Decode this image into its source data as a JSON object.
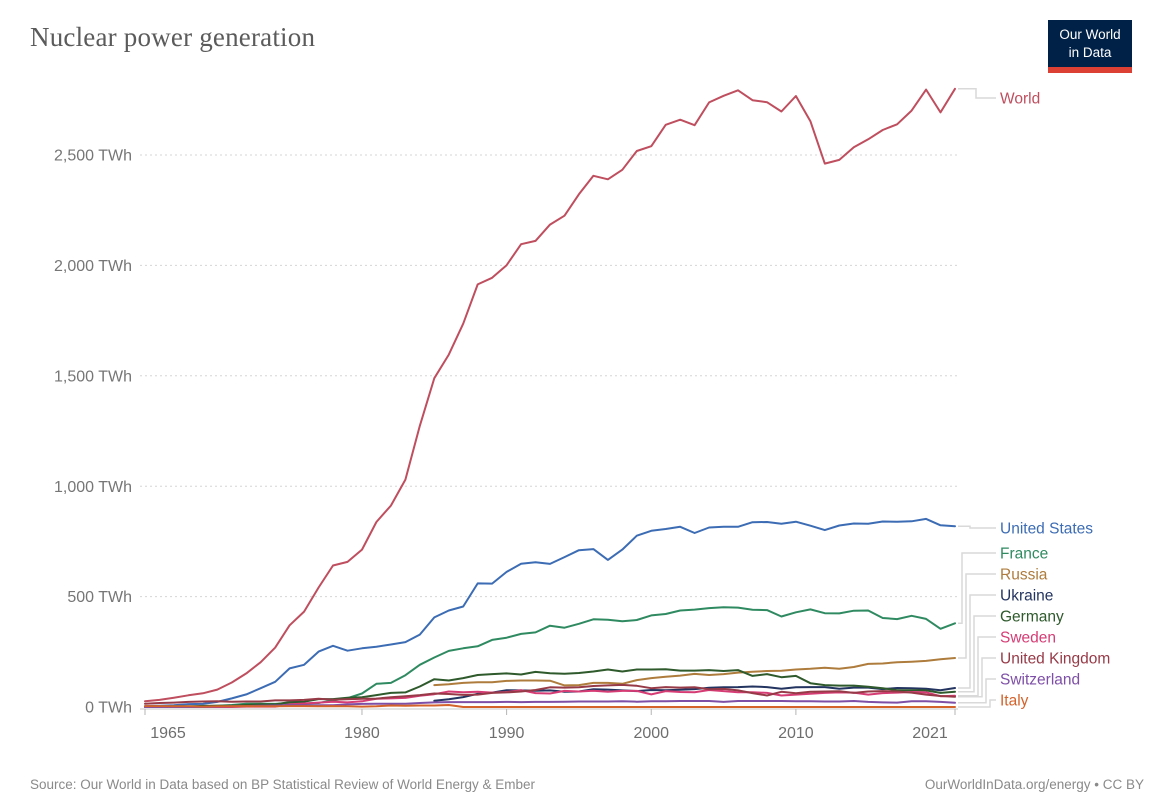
{
  "header": {
    "title": "Nuclear power generation",
    "logo": {
      "line1": "Our World",
      "line2": "in Data",
      "bg_color": "#002147",
      "bar_color": "#dc3f33"
    }
  },
  "footer": {
    "source": "Source: Our World in Data based on BP Statistical Review of World Energy & Ember",
    "credit": "OurWorldInData.org/energy • CC BY"
  },
  "chart_data": {
    "type": "line",
    "title": "Nuclear power generation",
    "unit": "TWh",
    "grid": "dashed-horizontal",
    "legend_position": "right-edge-labels",
    "x_range": [
      1965,
      2021
    ],
    "x_ticks": [
      1965,
      1980,
      1990,
      2000,
      2010,
      2021
    ],
    "y_ticks": [
      0,
      500,
      1000,
      1500,
      2000,
      2500
    ],
    "y_tick_labels": [
      "0 TWh",
      "500 TWh",
      "1,000 TWh",
      "1,500 TWh",
      "2,000 TWh",
      "2,500 TWh"
    ],
    "ylim": [
      0,
      2500
    ],
    "x": [
      1965,
      1966,
      1967,
      1968,
      1969,
      1970,
      1971,
      1972,
      1973,
      1974,
      1975,
      1976,
      1977,
      1978,
      1979,
      1980,
      1981,
      1982,
      1983,
      1984,
      1985,
      1986,
      1987,
      1988,
      1989,
      1990,
      1991,
      1992,
      1993,
      1994,
      1995,
      1996,
      1997,
      1998,
      1999,
      2000,
      2001,
      2002,
      2003,
      2004,
      2005,
      2006,
      2007,
      2008,
      2009,
      2010,
      2011,
      2012,
      2013,
      2014,
      2015,
      2016,
      2017,
      2018,
      2019,
      2020,
      2021
    ],
    "series": [
      {
        "name": "World",
        "color": "#bf4e5e",
        "values": [
          26,
          32,
          42,
          53,
          62,
          79,
          111,
          152,
          203,
          269,
          370,
          432,
          541,
          641,
          657,
          713,
          838,
          912,
          1030,
          1273,
          1489,
          1596,
          1736,
          1914,
          1944,
          2001,
          2096,
          2111,
          2185,
          2225,
          2322,
          2406,
          2390,
          2433,
          2518,
          2540,
          2637,
          2660,
          2635,
          2738,
          2768,
          2793,
          2748,
          2739,
          2697,
          2767,
          2653,
          2461,
          2478,
          2535,
          2571,
          2613,
          2639,
          2701,
          2796,
          2693,
          2800
        ]
      },
      {
        "name": "United States",
        "color": "#3c6cb4",
        "values": [
          4,
          6,
          8,
          13,
          14,
          23,
          39,
          57,
          85,
          114,
          175,
          191,
          251,
          277,
          255,
          266,
          273,
          283,
          294,
          328,
          406,
          437,
          455,
          560,
          559,
          612,
          649,
          656,
          648,
          679,
          710,
          715,
          666,
          713,
          776,
          798,
          806,
          816,
          788,
          813,
          816,
          816,
          837,
          838,
          830,
          839,
          821,
          801,
          822,
          831,
          830,
          840,
          839,
          841,
          852,
          823,
          819
        ]
      },
      {
        "name": "France",
        "color": "#2f8a61",
        "values": [
          1,
          2,
          3,
          3,
          4,
          6,
          9,
          15,
          15,
          14,
          18,
          16,
          18,
          30,
          40,
          61,
          105,
          109,
          144,
          191,
          224,
          254,
          266,
          275,
          304,
          314,
          331,
          338,
          368,
          359,
          377,
          397,
          395,
          388,
          394,
          415,
          421,
          437,
          441,
          448,
          452,
          450,
          440,
          439,
          410,
          429,
          442,
          425,
          424,
          436,
          437,
          403,
          398,
          413,
          399,
          354,
          379
        ]
      },
      {
        "name": "Russia",
        "color": "#ae7c3c",
        "values": [
          null,
          null,
          null,
          null,
          null,
          null,
          null,
          null,
          null,
          null,
          null,
          null,
          null,
          null,
          null,
          null,
          null,
          null,
          null,
          null,
          99,
          103,
          109,
          112,
          112,
          118,
          120,
          120,
          119,
          98,
          99,
          109,
          109,
          105,
          122,
          131,
          137,
          142,
          150,
          145,
          149,
          156,
          160,
          163,
          164,
          170,
          173,
          178,
          173,
          181,
          195,
          197,
          203,
          205,
          209,
          216,
          222
        ]
      },
      {
        "name": "Ukraine",
        "color": "#233460",
        "values": [
          null,
          null,
          null,
          null,
          null,
          null,
          null,
          null,
          null,
          null,
          null,
          null,
          null,
          null,
          null,
          null,
          null,
          null,
          null,
          null,
          28,
          35,
          45,
          60,
          65,
          76,
          75,
          74,
          75,
          69,
          70,
          80,
          79,
          75,
          72,
          77,
          76,
          78,
          81,
          87,
          89,
          90,
          93,
          90,
          83,
          89,
          90,
          90,
          83,
          88,
          88,
          81,
          86,
          85,
          83,
          76,
          86
        ]
      },
      {
        "name": "Germany",
        "color": "#2e5a2c",
        "values": [
          0,
          1,
          2,
          2,
          5,
          6,
          6,
          9,
          12,
          12,
          22,
          24,
          36,
          36,
          42,
          44,
          54,
          64,
          66,
          93,
          126,
          120,
          131,
          145,
          149,
          152,
          147,
          159,
          153,
          151,
          154,
          161,
          170,
          161,
          170,
          170,
          171,
          165,
          165,
          167,
          163,
          167,
          141,
          149,
          135,
          141,
          108,
          99,
          97,
          97,
          92,
          85,
          76,
          76,
          75,
          64,
          69
        ]
      },
      {
        "name": "Sweden",
        "color": "#d63c74",
        "values": [
          0,
          0,
          0,
          0,
          0,
          0,
          0,
          2,
          2,
          2,
          12,
          16,
          20,
          24,
          21,
          26,
          37,
          39,
          41,
          51,
          58,
          70,
          67,
          69,
          65,
          68,
          76,
          63,
          61,
          73,
          70,
          74,
          69,
          73,
          73,
          57,
          72,
          68,
          67,
          77,
          72,
          67,
          67,
          64,
          52,
          56,
          60,
          64,
          66,
          65,
          56,
          63,
          65,
          68,
          66,
          49,
          51
        ]
      },
      {
        "name": "United Kingdom",
        "color": "#973a47",
        "values": [
          15,
          18,
          20,
          23,
          25,
          26,
          24,
          25,
          25,
          30,
          30,
          32,
          37,
          33,
          35,
          37,
          38,
          44,
          49,
          54,
          61,
          59,
          55,
          56,
          64,
          66,
          70,
          77,
          89,
          88,
          89,
          95,
          98,
          100,
          96,
          85,
          90,
          88,
          89,
          80,
          82,
          75,
          63,
          52,
          69,
          62,
          69,
          70,
          71,
          64,
          70,
          72,
          70,
          65,
          56,
          50,
          46
        ]
      },
      {
        "name": "Switzerland",
        "color": "#7e4fa7",
        "values": [
          0,
          0,
          0,
          0,
          0,
          2,
          3,
          4,
          6,
          7,
          8,
          8,
          8,
          8,
          12,
          14,
          15,
          15,
          15,
          18,
          21,
          22,
          22,
          22,
          22,
          23,
          22,
          23,
          23,
          24,
          25,
          25,
          25,
          26,
          24,
          26,
          26,
          27,
          27,
          27,
          23,
          27,
          27,
          27,
          27,
          26,
          26,
          25,
          25,
          27,
          23,
          21,
          20,
          26,
          26,
          23,
          19
        ]
      },
      {
        "name": "Italy",
        "color": "#d3632b",
        "values": [
          4,
          4,
          3,
          3,
          2,
          3,
          3,
          4,
          3,
          3,
          4,
          4,
          3,
          4,
          3,
          2,
          3,
          7,
          6,
          7,
          7,
          9,
          0,
          0,
          0,
          0,
          0,
          0,
          0,
          0,
          0,
          0,
          0,
          0,
          0,
          0,
          0,
          0,
          0,
          0,
          0,
          0,
          0,
          0,
          0,
          0,
          0,
          0,
          0,
          0,
          0,
          0,
          0,
          0,
          0,
          0,
          0
        ]
      }
    ]
  }
}
